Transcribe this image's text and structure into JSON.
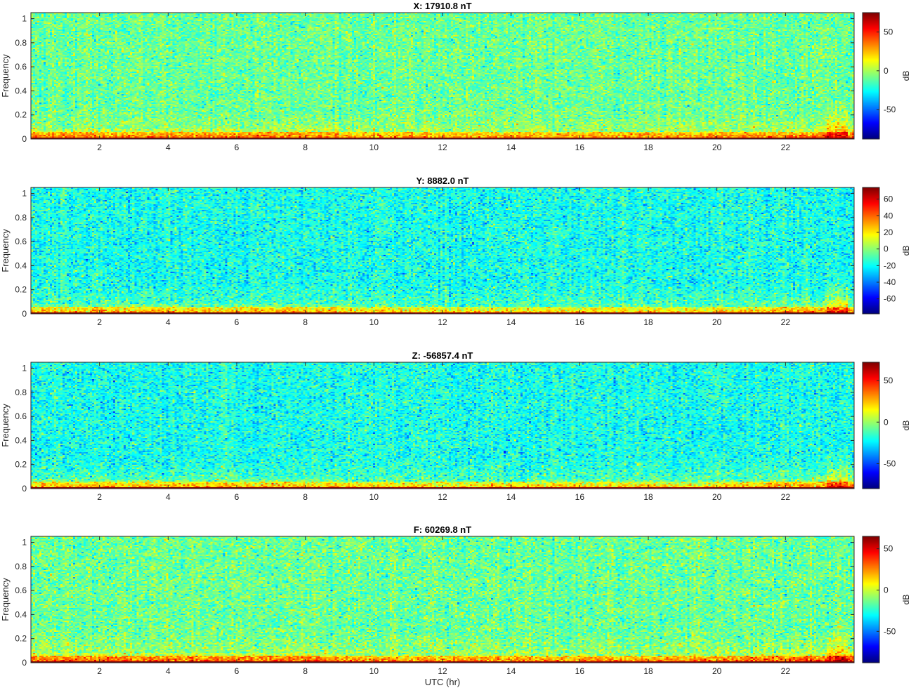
{
  "chart_data": [
    {
      "type": "heatmap",
      "title": "X: 17910.8 nT",
      "ylabel": "Frequency",
      "xlabel": "",
      "xlim": [
        0,
        24
      ],
      "ylim": [
        0,
        1.05
      ],
      "x_ticks": [
        2,
        4,
        6,
        8,
        10,
        12,
        14,
        16,
        18,
        20,
        22
      ],
      "y_ticks": [
        0,
        0.2,
        0.4,
        0.6,
        0.8,
        1
      ],
      "colorbar": {
        "label": "dB",
        "range": [
          -88,
          75
        ],
        "ticks": [
          -50,
          0,
          50
        ],
        "colormap": "jet"
      },
      "background_level_db": -10
    },
    {
      "type": "heatmap",
      "title": "Y: 8882.0 nT",
      "ylabel": "Frequency",
      "xlabel": "",
      "xlim": [
        0,
        24
      ],
      "ylim": [
        0,
        1.05
      ],
      "x_ticks": [
        2,
        4,
        6,
        8,
        10,
        12,
        14,
        16,
        18,
        20,
        22
      ],
      "y_ticks": [
        0,
        0.2,
        0.4,
        0.6,
        0.8,
        1
      ],
      "colorbar": {
        "label": "dB",
        "range": [
          -78,
          74
        ],
        "ticks": [
          -60,
          -40,
          -20,
          0,
          20,
          40,
          60
        ],
        "colormap": "jet"
      },
      "background_level_db": -18
    },
    {
      "type": "heatmap",
      "title": "Z: -56857.4 nT",
      "ylabel": "Frequency",
      "xlabel": "",
      "xlim": [
        0,
        24
      ],
      "ylim": [
        0,
        1.05
      ],
      "x_ticks": [
        2,
        4,
        6,
        8,
        10,
        12,
        14,
        16,
        18,
        20,
        22
      ],
      "y_ticks": [
        0,
        0.2,
        0.4,
        0.6,
        0.8,
        1
      ],
      "colorbar": {
        "label": "dB",
        "range": [
          -80,
          72
        ],
        "ticks": [
          -50,
          0,
          50
        ],
        "colormap": "jet"
      },
      "background_level_db": -20
    },
    {
      "type": "heatmap",
      "title": "F: 60269.8 nT",
      "ylabel": "Frequency",
      "xlabel": "UTC (hr)",
      "xlim": [
        0,
        24
      ],
      "ylim": [
        0,
        1.05
      ],
      "x_ticks": [
        2,
        4,
        6,
        8,
        10,
        12,
        14,
        16,
        18,
        20,
        22
      ],
      "y_ticks": [
        0,
        0.2,
        0.4,
        0.6,
        0.8,
        1
      ],
      "colorbar": {
        "label": "dB",
        "range": [
          -88,
          65
        ],
        "ticks": [
          -50,
          0,
          50
        ],
        "colormap": "jet"
      },
      "background_level_db": -15
    }
  ]
}
